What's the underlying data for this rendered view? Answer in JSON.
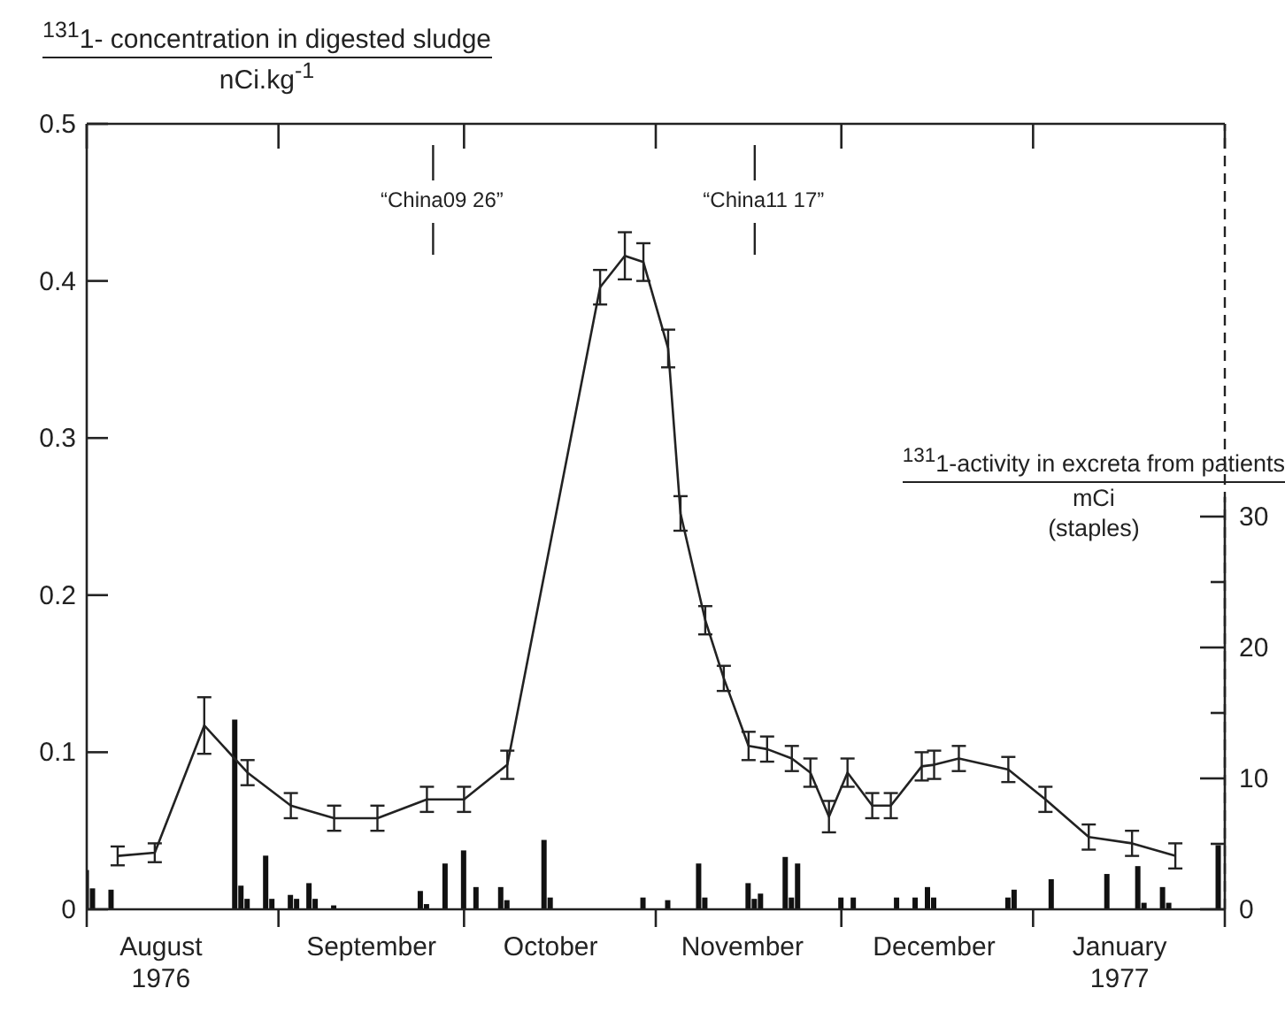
{
  "chart_data": {
    "type": "line",
    "ylabel": "$^{131}$1- concentration in digested sludge\nnCi.kg$^{-1}$",
    "y2label": "$^{131}$1-activity in excreta from patients\nmCi\n(staples)",
    "xlim": [
      "1976-08-01",
      "1977-02-01"
    ],
    "xticks": [
      {
        "value": "1976-08-01",
        "label": null
      },
      {
        "value": "1976-08-13",
        "label": "August\n1976"
      },
      {
        "value": "1976-09-01",
        "label": null
      },
      {
        "value": "1976-09-16",
        "label": "September"
      },
      {
        "value": "1976-10-01",
        "label": null
      },
      {
        "value": "1976-10-15",
        "label": "October"
      },
      {
        "value": "1976-11-01",
        "label": null
      },
      {
        "value": "1976-11-15",
        "label": "November"
      },
      {
        "value": "1976-12-01",
        "label": null
      },
      {
        "value": "1976-12-16",
        "label": "December"
      },
      {
        "value": "1977-01-01",
        "label": null
      },
      {
        "value": "1977-01-15",
        "label": "January\n1977"
      },
      {
        "value": "1977-02-01",
        "label": null
      }
    ],
    "ylim": [
      0,
      0.5
    ],
    "yticks": [
      0,
      0.1,
      0.2,
      0.3,
      0.4,
      0.5
    ],
    "y2lim": [
      0,
      60
    ],
    "y2ticks": [
      0,
      {
        "value": 5,
        "label": null
      },
      10,
      {
        "value": 15,
        "label": null
      },
      20,
      {
        "value": 25,
        "label": null
      },
      30
    ],
    "marker": "none",
    "line_style": "solid",
    "series": [
      {
        "type": "bar",
        "axis": "y2",
        "color": "#111111",
        "x": [
          "1976-08-01",
          "1976-08-02",
          "1976-08-05",
          "1976-08-25",
          "1976-08-26",
          "1976-08-27",
          "1976-08-30",
          "1976-08-31",
          "1976-09-03",
          "1976-09-04",
          "1976-09-06",
          "1976-09-07",
          "1976-09-10",
          "1976-09-24",
          "1976-09-25",
          "1976-09-28",
          "1976-10-01",
          "1976-10-03",
          "1976-10-07",
          "1976-10-08",
          "1976-10-14",
          "1976-10-15",
          "1976-10-30",
          "1976-11-03",
          "1976-11-08",
          "1976-11-09",
          "1976-11-16",
          "1976-11-17",
          "1976-11-18",
          "1976-11-22",
          "1976-11-23",
          "1976-11-24",
          "1976-12-01",
          "1976-12-03",
          "1976-12-10",
          "1976-12-13",
          "1976-12-15",
          "1976-12-16",
          "1976-12-28",
          "1976-12-29",
          "1977-01-04",
          "1977-01-13",
          "1977-01-18",
          "1977-01-19",
          "1977-01-22",
          "1977-01-23",
          "1977-01-31"
        ],
        "values": [
          3.0,
          1.6,
          1.5,
          14.5,
          1.8,
          0.8,
          4.1,
          0.8,
          1.1,
          0.8,
          2.0,
          0.8,
          0.3,
          1.4,
          0.4,
          3.5,
          4.5,
          1.7,
          1.7,
          0.7,
          5.3,
          0.9,
          0.9,
          0.7,
          3.5,
          0.9,
          2.0,
          0.8,
          1.2,
          4.0,
          0.9,
          3.5,
          0.9,
          0.9,
          0.9,
          0.9,
          1.7,
          0.9,
          0.9,
          1.5,
          2.3,
          2.7,
          3.3,
          0.5,
          1.7,
          0.5,
          4.9
        ]
      },
      {
        "color": "#222222",
        "x": [
          "1976-08-06",
          "1976-08-12",
          "1976-08-20",
          "1976-08-27",
          "1976-09-03",
          "1976-09-10",
          "1976-09-17",
          "1976-09-25",
          "1976-10-01",
          "1976-10-08",
          "1976-10-23",
          "1976-10-27",
          "1976-10-30",
          "1976-11-03",
          "1976-11-05",
          "1976-11-09",
          "1976-11-12",
          "1976-11-16",
          "1976-11-19",
          "1976-11-23",
          "1976-11-26",
          "1976-11-29",
          "1976-12-02",
          "1976-12-06",
          "1976-12-09",
          "1976-12-14",
          "1976-12-16",
          "1976-12-20",
          "1976-12-28",
          "1977-01-03",
          "1977-01-10",
          "1977-01-17",
          "1977-01-24"
        ],
        "values": [
          0.034,
          0.036,
          0.117,
          0.087,
          0.066,
          0.058,
          0.058,
          0.07,
          0.07,
          0.092,
          0.396,
          0.416,
          0.412,
          0.357,
          0.252,
          0.184,
          0.147,
          0.104,
          0.102,
          0.096,
          0.087,
          0.059,
          0.087,
          0.066,
          0.066,
          0.091,
          0.092,
          0.096,
          0.089,
          0.07,
          0.046,
          0.042,
          0.034
        ],
        "errors": [
          0.006,
          0.006,
          0.018,
          0.008,
          0.008,
          0.008,
          0.008,
          0.008,
          0.008,
          0.009,
          0.011,
          0.015,
          0.012,
          0.012,
          0.011,
          0.009,
          0.008,
          0.009,
          0.008,
          0.008,
          0.009,
          0.01,
          0.009,
          0.008,
          0.008,
          0.009,
          0.009,
          0.008,
          0.008,
          0.008,
          0.008,
          0.008,
          0.008
        ]
      }
    ],
    "ref_lines": [
      {
        "axis": "x",
        "value": "1977-02-01",
        "line_style": "dashed",
        "color": "#222222"
      },
      {
        "axis": "x",
        "value": "1976-09-26",
        "label": "“China09 26”",
        "color": "#222222"
      },
      {
        "axis": "x",
        "value": "1976-11-17",
        "label": "“China11 17”",
        "color": "#222222"
      }
    ]
  }
}
